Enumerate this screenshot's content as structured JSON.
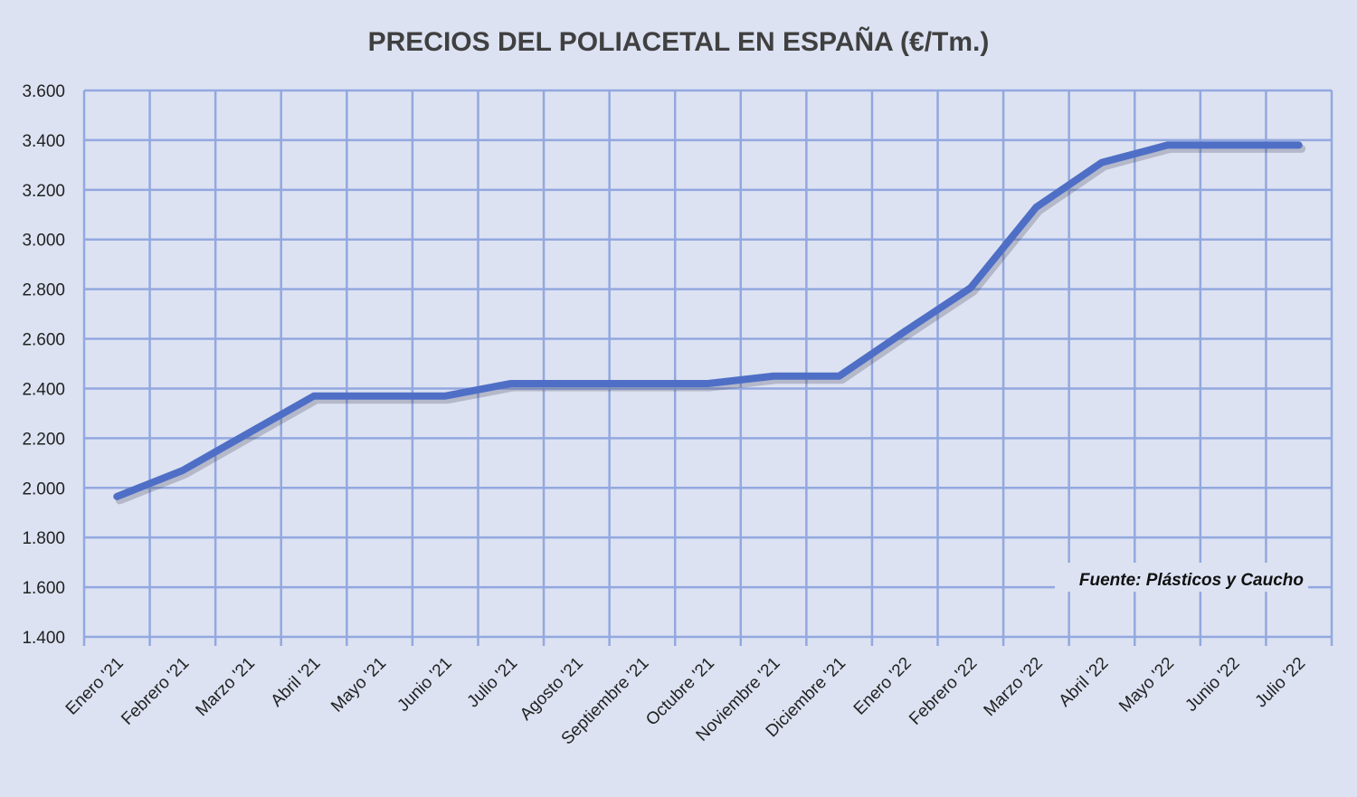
{
  "chart_data": {
    "type": "line",
    "title": "PRECIOS DEL POLIACETAL  EN ESPAÑA (€/Tm.)",
    "xlabel": "",
    "ylabel": "",
    "categories": [
      "Enero '21",
      "Febrero '21",
      "Marzo '21",
      "Abril '21",
      "Mayo '21",
      "Junio '21",
      "Julio '21",
      "Agosto '21",
      "Septiembre '21",
      "Octubre '21",
      "Noviembre '21",
      "Diciembre '21",
      "Enero '22",
      "Febrero '22",
      "Marzo '22",
      "Abril '22",
      "Mayo '22",
      "Junio '22",
      "Julio '22"
    ],
    "series": [
      {
        "name": "Poliacetal",
        "values": [
          1965,
          2070,
          2220,
          2370,
          2370,
          2370,
          2420,
          2420,
          2420,
          2420,
          2450,
          2450,
          2630,
          2805,
          3130,
          3310,
          3380,
          3380,
          3380
        ]
      }
    ],
    "ylim": [
      1400,
      3600
    ],
    "yticks": [
      1400,
      1600,
      1800,
      2000,
      2200,
      2400,
      2600,
      2800,
      3000,
      3200,
      3400,
      3600
    ],
    "ytick_labels": [
      "1.400",
      "1.600",
      "1.800",
      "2.000",
      "2.200",
      "2.400",
      "2.600",
      "2.800",
      "3.000",
      "3.200",
      "3.400",
      "3.600"
    ],
    "grid": true,
    "annotation": "Fuente: Plásticos y Caucho",
    "colors": {
      "line": "#4f6fc6",
      "grid": "#93a8df",
      "background": "#dce2f2"
    }
  }
}
